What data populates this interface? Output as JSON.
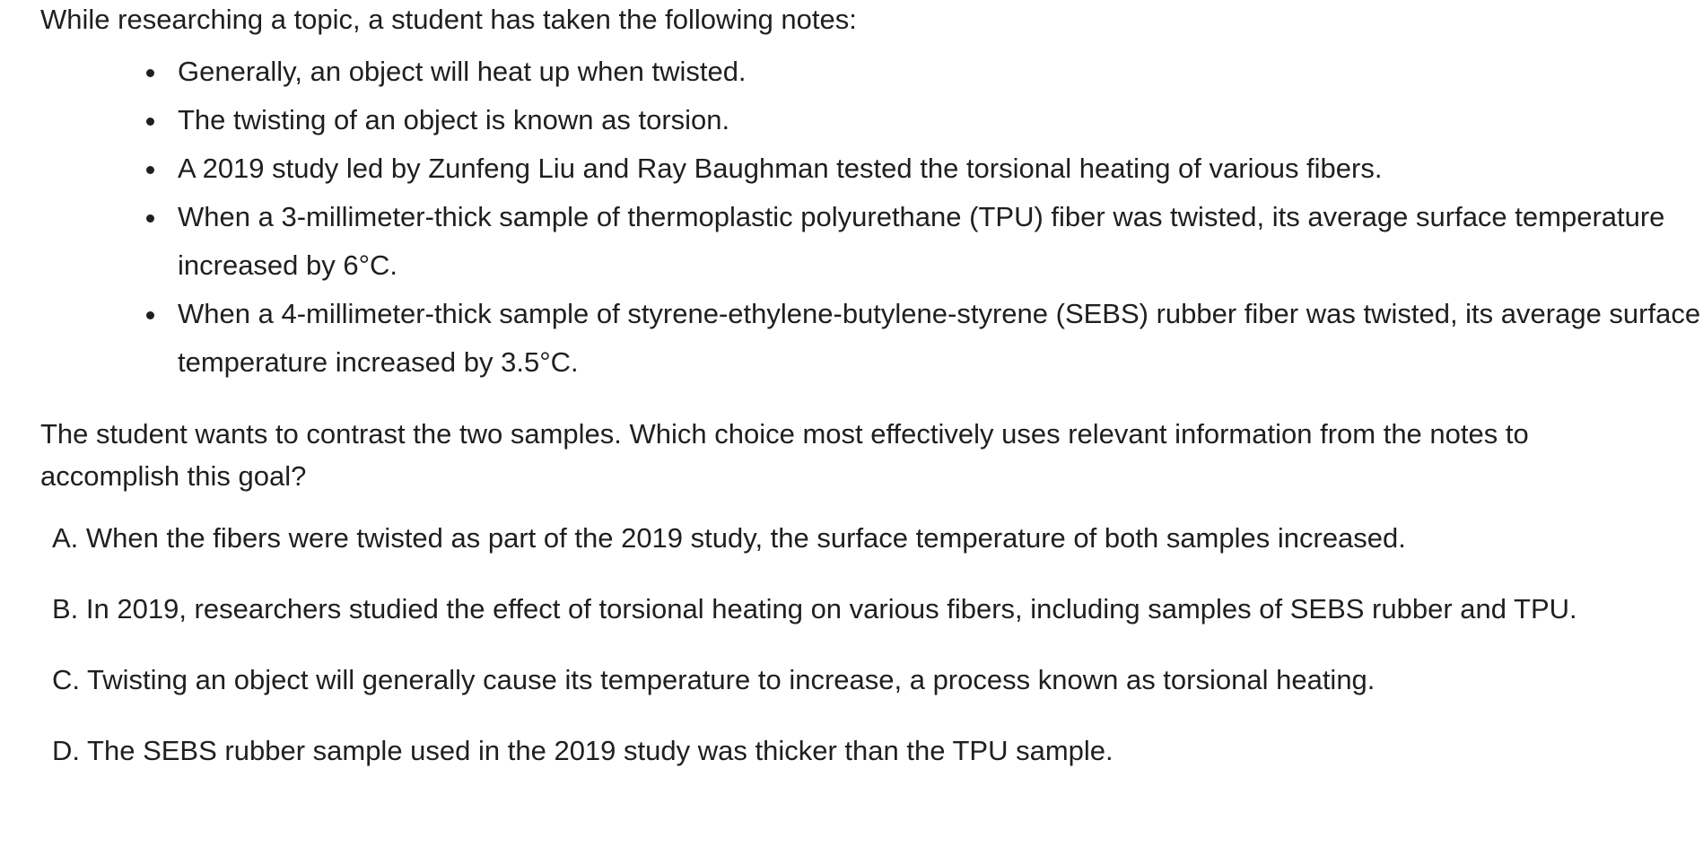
{
  "intro": "While researching a topic, a student has taken the following notes:",
  "notes": [
    "Generally, an object will heat up when twisted.",
    "The twisting of an object is known as torsion.",
    "A 2019 study led by Zunfeng Liu and Ray Baughman tested the torsional heating of various fibers.",
    "When a 3-millimeter-thick sample of thermoplastic polyurethane (TPU) fiber was twisted, its average surface temperature increased by 6°C.",
    "When a 4-millimeter-thick sample of styrene-ethylene-butylene-styrene (SEBS) rubber fiber was twisted, its average surface temperature increased by 3.5°C."
  ],
  "question": "The student wants to contrast the two samples. Which choice most effectively uses relevant information from the notes to accomplish this goal?",
  "choices": [
    "A. When the fibers were twisted as part of the 2019 study, the surface temperature of both samples increased.",
    "B. In 2019, researchers studied the effect of torsional heating on various fibers, including samples of SEBS rubber and TPU.",
    "C. Twisting an object will generally cause its temperature to increase, a process known as torsional heating.",
    "D. The SEBS rubber sample used in the 2019 study was thicker than the TPU sample."
  ]
}
